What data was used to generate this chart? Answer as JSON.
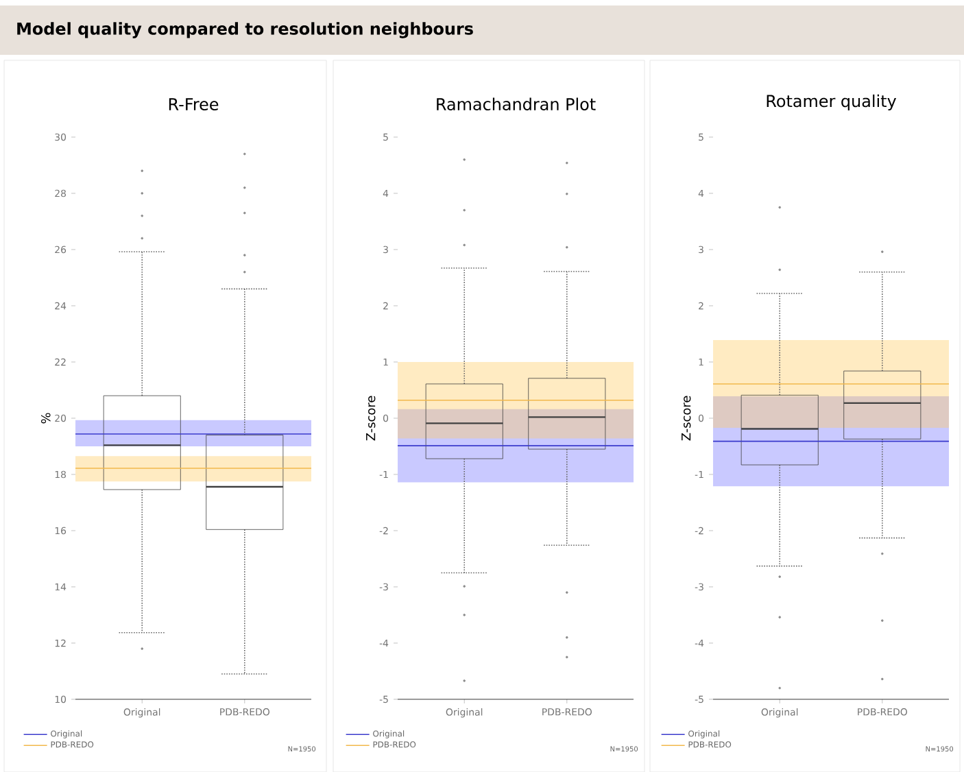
{
  "chart_data": [
    {
      "type": "box",
      "title": "R-Free",
      "ylabel": "%",
      "categories": [
        "Original",
        "PDB-REDO"
      ],
      "color": "#404040",
      "legend": "bottom",
      "ylim": [
        10,
        30
      ],
      "yticks": [
        10,
        12,
        14,
        16,
        18,
        20,
        22,
        24,
        26,
        28,
        30
      ],
      "boxes": [
        {
          "low": 12.37,
          "q1": 17.46,
          "median": 19.04,
          "q3": 20.8,
          "high": 25.92,
          "outliers": [
            26.4,
            27.2,
            28.0,
            28.8,
            11.8
          ]
        },
        {
          "low": 10.9,
          "q1": 16.04,
          "median": 17.56,
          "q3": 19.4,
          "high": 24.6,
          "outliers": [
            25.2,
            25.8,
            27.3,
            28.2,
            29.4
          ]
        }
      ],
      "ref_lines": [
        {
          "axis": "y",
          "value": 19.44,
          "label": "Original",
          "color": "#3a3acc"
        },
        {
          "axis": "y",
          "value": 18.22,
          "label": "PDB-REDO",
          "color": "#f2b84b"
        }
      ],
      "bands": [
        {
          "axis": "y",
          "from": 19.0,
          "to": 19.93,
          "color": "#7777ff"
        },
        {
          "axis": "y",
          "from": 17.75,
          "to": 18.65,
          "color": "#ffcc66"
        }
      ],
      "annotations": [
        "Model quality compared to resolution neighbours",
        "N=1950"
      ]
    },
    {
      "type": "box",
      "title": "Ramachandran Plot",
      "ylabel": "Z-score",
      "categories": [
        "Original",
        "PDB-REDO"
      ],
      "color": "#404040",
      "legend": "bottom",
      "ylim": [
        -5,
        5
      ],
      "yticks": [
        -5,
        -4,
        -3,
        -2,
        -1,
        0,
        1,
        2,
        3,
        4,
        5
      ],
      "boxes": [
        {
          "low": -2.75,
          "q1": -0.72,
          "median": -0.09,
          "q3": 0.61,
          "high": 2.67,
          "outliers": [
            3.08,
            3.7,
            4.6,
            -2.99,
            -3.5,
            -4.67
          ]
        },
        {
          "low": -2.26,
          "q1": -0.55,
          "median": 0.02,
          "q3": 0.71,
          "high": 2.61,
          "outliers": [
            3.04,
            3.99,
            4.54,
            -3.1,
            -3.9,
            -4.25
          ]
        }
      ],
      "ref_lines": [
        {
          "axis": "y",
          "value": -0.49,
          "label": "Original",
          "color": "#3a3acc"
        },
        {
          "axis": "y",
          "value": 0.32,
          "label": "PDB-REDO",
          "color": "#f2b84b"
        }
      ],
      "bands": [
        {
          "axis": "y",
          "from": -1.14,
          "to": 0.16,
          "color": "#7777ff"
        },
        {
          "axis": "y",
          "from": -0.36,
          "to": 1.0,
          "color": "#ffcc66"
        }
      ],
      "annotations": [
        "N=1950"
      ]
    },
    {
      "type": "box",
      "title": "Rotamer quality",
      "ylabel": "Z-score",
      "categories": [
        "Original",
        "PDB-REDO"
      ],
      "color": "#404040",
      "legend": "bottom",
      "ylim": [
        -5,
        5
      ],
      "yticks": [
        -5,
        -4,
        -3,
        -2,
        -1,
        0,
        1,
        2,
        3,
        4,
        5
      ],
      "boxes": [
        {
          "low": -2.63,
          "q1": -0.83,
          "median": -0.19,
          "q3": 0.41,
          "high": 2.22,
          "outliers": [
            2.64,
            3.75,
            -2.82,
            -3.54,
            -4.8
          ]
        },
        {
          "low": -2.13,
          "q1": -0.37,
          "median": 0.27,
          "q3": 0.84,
          "high": 2.6,
          "outliers": [
            2.96,
            -2.41,
            -3.6,
            -4.64
          ]
        }
      ],
      "ref_lines": [
        {
          "axis": "y",
          "value": -0.41,
          "label": "Original",
          "color": "#3a3acc"
        },
        {
          "axis": "y",
          "value": 0.61,
          "label": "PDB-REDO",
          "color": "#f2b84b"
        }
      ],
      "bands": [
        {
          "axis": "y",
          "from": -1.21,
          "to": 0.39,
          "color": "#7777ff"
        },
        {
          "axis": "y",
          "from": -0.17,
          "to": 1.39,
          "color": "#ffcc66"
        }
      ],
      "annotations": [
        "N=1950"
      ]
    }
  ]
}
